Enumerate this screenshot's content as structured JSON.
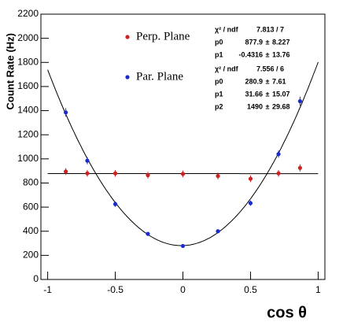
{
  "chart_data": {
    "type": "scatter",
    "xlabel": "cos θ",
    "ylabel": "Count Rate (Hz)",
    "xlim": [
      -1.05,
      1.05
    ],
    "ylim": [
      0,
      2200
    ],
    "xticks": [
      -1,
      -0.5,
      0,
      0.5,
      1
    ],
    "yticks": [
      0,
      200,
      400,
      600,
      800,
      1000,
      1200,
      1400,
      1600,
      1800,
      2000,
      2200
    ],
    "pm": "±",
    "series": [
      {
        "name": "Perp. Plane",
        "color": "#cc2222",
        "x": [
          -0.866,
          -0.707,
          -0.5,
          -0.259,
          0,
          0.259,
          0.5,
          0.707,
          0.866
        ],
        "values": [
          895,
          880,
          880,
          865,
          875,
          858,
          835,
          880,
          925
        ],
        "errors": [
          28,
          28,
          28,
          28,
          28,
          28,
          28,
          28,
          30
        ],
        "fit": {
          "chi2_label": "χ² / ndf",
          "chi2": "7.813 / 7",
          "params": [
            {
              "name": "p0",
              "value": 877.9,
              "error": 8.227
            },
            {
              "name": "p1",
              "value": -0.4316,
              "error": 13.76
            }
          ]
        }
      },
      {
        "name": "Par. Plane",
        "color": "#1a2bcc",
        "x": [
          -0.866,
          -0.707,
          -0.5,
          -0.259,
          0,
          0.259,
          0.5,
          0.707,
          0.866
        ],
        "values": [
          1385,
          985,
          625,
          378,
          278,
          400,
          633,
          1040,
          1478
        ],
        "errors": [
          35,
          30,
          22,
          15,
          12,
          15,
          22,
          30,
          38
        ],
        "fit": {
          "chi2_label": "χ² / ndf",
          "chi2": "7.556 / 6",
          "params": [
            {
              "name": "p0",
              "value": 280.9,
              "error": 7.61
            },
            {
              "name": "p1",
              "value": 31.66,
              "error": 15.07
            },
            {
              "name": "p2",
              "value": 1490,
              "error": 29.68
            }
          ]
        }
      }
    ]
  }
}
